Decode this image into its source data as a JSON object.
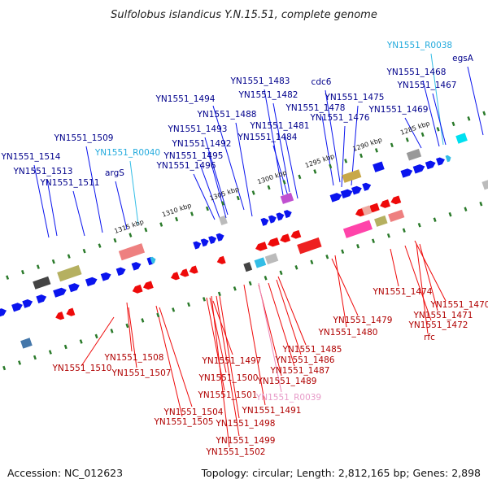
{
  "title": "Sulfolobus islandicus Y.N.15.51, complete genome",
  "accession_text": "Accession: NC_012623",
  "summary_text": "Topology: circular; Length: 2,812,165 bp; Genes: 2,898",
  "colors": {
    "forward_cds": "#0a14ee",
    "forward_rna": "#33bde6",
    "reverse_cds": "#ee0a0a",
    "reverse_rna": "#ee88b8",
    "forward_label": "#00008b",
    "forward_rna_label": "#22aadd",
    "reverse_label": "#b00000",
    "reverse_rna_label": "#e79ac8",
    "axis": "#8a8a8a",
    "ticks": "#2a7a2a"
  },
  "scale": {
    "tick_labels": [
      "1285 kbp",
      "1290 kbp",
      "1295 kbp",
      "1300 kbp",
      "1305 kbp",
      "1310 kbp",
      "1315 kbp"
    ]
  },
  "labels": {
    "forward": [
      {
        "text": "YN1551_R0038",
        "type": "rna"
      },
      {
        "text": "egsA",
        "type": "cds"
      },
      {
        "text": "YN1551_1468",
        "type": "cds"
      },
      {
        "text": "YN1551_1467",
        "type": "cds"
      },
      {
        "text": "cdc6",
        "type": "cds"
      },
      {
        "text": "YN1551_1483",
        "type": "cds"
      },
      {
        "text": "YN1551_1482",
        "type": "cds"
      },
      {
        "text": "YN1551_1475",
        "type": "cds"
      },
      {
        "text": "YN1551_1494",
        "type": "cds"
      },
      {
        "text": "YN1551_1478",
        "type": "cds"
      },
      {
        "text": "YN1551_1469",
        "type": "cds"
      },
      {
        "text": "YN1551_1488",
        "type": "cds"
      },
      {
        "text": "YN1551_1476",
        "type": "cds"
      },
      {
        "text": "YN1551_1481",
        "type": "cds"
      },
      {
        "text": "YN1551_1493",
        "type": "cds"
      },
      {
        "text": "YN1551_1484",
        "type": "cds"
      },
      {
        "text": "YN1551_1509",
        "type": "cds"
      },
      {
        "text": "YN1551_1492",
        "type": "cds"
      },
      {
        "text": "YN1551_R0040",
        "type": "rna"
      },
      {
        "text": "YN1551_1495",
        "type": "cds"
      },
      {
        "text": "YN1551_1514",
        "type": "cds"
      },
      {
        "text": "YN1551_1496",
        "type": "cds"
      },
      {
        "text": "argS",
        "type": "cds"
      },
      {
        "text": "YN1551_1513",
        "type": "cds"
      },
      {
        "text": "YN1551_1511",
        "type": "cds"
      }
    ],
    "reverse": [
      {
        "text": "YN1551_1474",
        "type": "cds"
      },
      {
        "text": "YN1551_1470",
        "type": "cds"
      },
      {
        "text": "YN1551_1471",
        "type": "cds"
      },
      {
        "text": "YN1551_1479",
        "type": "cds"
      },
      {
        "text": "YN1551_1472",
        "type": "cds"
      },
      {
        "text": "YN1551_1480",
        "type": "cds"
      },
      {
        "text": "rfc",
        "type": "cds"
      },
      {
        "text": "YN1551_1485",
        "type": "cds"
      },
      {
        "text": "YN1551_1508",
        "type": "cds"
      },
      {
        "text": "YN1551_1497",
        "type": "cds"
      },
      {
        "text": "YN1551_1486",
        "type": "cds"
      },
      {
        "text": "YN1551_1510",
        "type": "cds"
      },
      {
        "text": "YN1551_1487",
        "type": "cds"
      },
      {
        "text": "YN1551_1507",
        "type": "cds"
      },
      {
        "text": "YN1551_1500",
        "type": "cds"
      },
      {
        "text": "YN1551_1489",
        "type": "cds"
      },
      {
        "text": "YN1551_1501",
        "type": "cds"
      },
      {
        "text": "YN1551_R0039",
        "type": "rna"
      },
      {
        "text": "YN1551_1504",
        "type": "cds"
      },
      {
        "text": "YN1551_1491",
        "type": "cds"
      },
      {
        "text": "YN1551_1505",
        "type": "cds"
      },
      {
        "text": "YN1551_1498",
        "type": "cds"
      },
      {
        "text": "YN1551_1499",
        "type": "cds"
      },
      {
        "text": "YN1551_1502",
        "type": "cds"
      }
    ]
  }
}
